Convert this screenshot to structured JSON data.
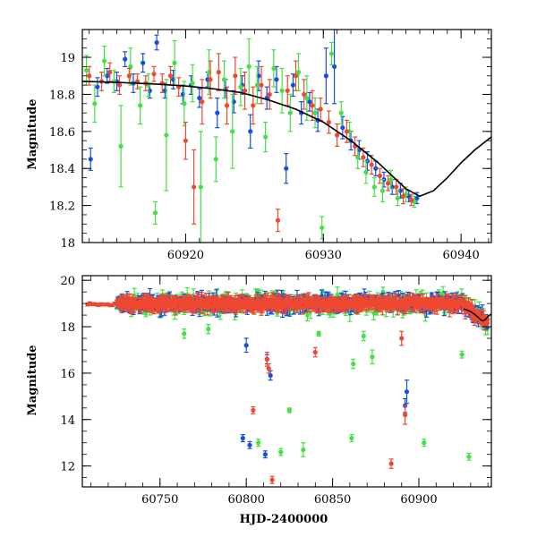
{
  "chart_data": [
    {
      "type": "scatter",
      "title": "",
      "xlabel": "",
      "ylabel": "Magnitude",
      "xlim": [
        60912.5,
        60942.2
      ],
      "ylim": [
        19.15,
        18.0
      ],
      "y_inverted": true,
      "xticks": [
        60920,
        60930,
        60940
      ],
      "xtick_labels": [
        "60920",
        "60930",
        "60940"
      ],
      "yticks": [
        18,
        18.2,
        18.4,
        18.6,
        18.8,
        19
      ],
      "ytick_labels": [
        "18",
        "18.2",
        "18.4",
        "18.6",
        "18.8",
        "19"
      ],
      "colors": {
        "blue": "#1450e0",
        "green": "#44e044",
        "red": "#f04830",
        "model": "#000000"
      },
      "series": [
        {
          "color": "blue",
          "points": [
            [
              60913.1,
              18.45,
              0.06
            ],
            [
              60913.6,
              18.84,
              0.05
            ],
            [
              60914.3,
              18.9,
              0.04
            ],
            [
              60915.0,
              18.87,
              0.05
            ],
            [
              60915.6,
              18.99,
              0.04
            ],
            [
              60916.2,
              18.86,
              0.05
            ],
            [
              60916.9,
              18.97,
              0.05
            ],
            [
              60917.4,
              18.82,
              0.04
            ],
            [
              60917.9,
              19.08,
              0.04
            ],
            [
              60918.5,
              18.82,
              0.04
            ],
            [
              60919.1,
              18.88,
              0.05
            ],
            [
              60919.8,
              18.8,
              0.05
            ],
            [
              60920.4,
              18.85,
              0.05
            ],
            [
              60921.0,
              18.78,
              0.05
            ],
            [
              60921.6,
              18.88,
              0.04
            ],
            [
              60922.3,
              18.7,
              0.08
            ],
            [
              60922.9,
              18.83,
              0.05
            ],
            [
              60923.5,
              18.76,
              0.06
            ],
            [
              60924.1,
              18.85,
              0.05
            ],
            [
              60924.7,
              18.6,
              0.09
            ],
            [
              60925.3,
              18.9,
              0.08
            ],
            [
              60925.9,
              18.78,
              0.06
            ],
            [
              60926.6,
              18.88,
              0.07
            ],
            [
              60927.3,
              18.4,
              0.08
            ],
            [
              60927.8,
              18.85,
              0.06
            ],
            [
              60928.4,
              18.7,
              0.06
            ],
            [
              60929.0,
              18.76,
              0.05
            ],
            [
              60929.6,
              18.66,
              0.06
            ],
            [
              60930.2,
              18.9,
              0.15
            ],
            [
              60930.8,
              18.95,
              0.2
            ],
            [
              60931.4,
              18.62,
              0.06
            ],
            [
              60932.0,
              18.55,
              0.05
            ],
            [
              60932.6,
              18.5,
              0.05
            ],
            [
              60933.2,
              18.44,
              0.05
            ],
            [
              60933.8,
              18.4,
              0.04
            ],
            [
              60934.4,
              18.34,
              0.04
            ],
            [
              60935.0,
              18.3,
              0.04
            ],
            [
              60935.6,
              18.28,
              0.04
            ],
            [
              60936.2,
              18.25,
              0.03
            ],
            [
              60936.8,
              18.24,
              0.03
            ]
          ]
        },
        {
          "color": "green",
          "points": [
            [
              60912.8,
              18.93,
              0.08
            ],
            [
              60913.4,
              18.75,
              0.1
            ],
            [
              60914.1,
              18.98,
              0.08
            ],
            [
              60914.8,
              18.87,
              0.06
            ],
            [
              60915.3,
              18.52,
              0.22
            ],
            [
              60916.0,
              18.95,
              0.1
            ],
            [
              60916.7,
              18.74,
              0.1
            ],
            [
              60917.3,
              18.85,
              0.06
            ],
            [
              60917.8,
              18.16,
              0.06
            ],
            [
              60918.6,
              18.58,
              0.3
            ],
            [
              60919.2,
              18.97,
              0.12
            ],
            [
              60919.9,
              18.75,
              0.12
            ],
            [
              60920.5,
              18.86,
              0.1
            ],
            [
              60921.1,
              18.3,
              0.3
            ],
            [
              60921.7,
              18.92,
              0.12
            ],
            [
              60922.2,
              18.45,
              0.12
            ],
            [
              60922.8,
              18.88,
              0.1
            ],
            [
              60923.4,
              18.6,
              0.2
            ],
            [
              60924.0,
              18.84,
              0.1
            ],
            [
              60924.6,
              18.95,
              0.15
            ],
            [
              60925.2,
              18.85,
              0.1
            ],
            [
              60925.8,
              18.57,
              0.08
            ],
            [
              60926.4,
              18.94,
              0.1
            ],
            [
              60927.0,
              18.82,
              0.12
            ],
            [
              60927.6,
              18.7,
              0.1
            ],
            [
              60928.2,
              18.92,
              0.1
            ],
            [
              60928.8,
              18.78,
              0.12
            ],
            [
              60929.4,
              18.7,
              0.08
            ],
            [
              60929.9,
              18.08,
              0.06
            ],
            [
              60930.6,
              19.02,
              0.06
            ],
            [
              60931.3,
              18.7,
              0.06
            ],
            [
              60931.9,
              18.6,
              0.05
            ],
            [
              60932.5,
              18.46,
              0.06
            ],
            [
              60933.1,
              18.38,
              0.06
            ],
            [
              60933.7,
              18.3,
              0.05
            ],
            [
              60934.3,
              18.28,
              0.06
            ],
            [
              60934.9,
              18.34,
              0.05
            ],
            [
              60935.4,
              18.24,
              0.04
            ],
            [
              60936.0,
              18.26,
              0.04
            ],
            [
              60936.6,
              18.22,
              0.03
            ]
          ]
        },
        {
          "color": "red",
          "points": [
            [
              60913.0,
              18.9,
              0.05
            ],
            [
              60913.9,
              18.87,
              0.05
            ],
            [
              60914.5,
              18.92,
              0.05
            ],
            [
              60915.2,
              18.85,
              0.05
            ],
            [
              60915.9,
              18.9,
              0.04
            ],
            [
              60916.5,
              18.87,
              0.04
            ],
            [
              60917.1,
              18.86,
              0.04
            ],
            [
              60917.7,
              18.91,
              0.04
            ],
            [
              60918.3,
              18.86,
              0.05
            ],
            [
              60918.9,
              18.9,
              0.05
            ],
            [
              60919.5,
              18.84,
              0.05
            ],
            [
              60920.0,
              18.55,
              0.1
            ],
            [
              60920.6,
              18.3,
              0.2
            ],
            [
              60921.2,
              18.76,
              0.12
            ],
            [
              60921.8,
              18.88,
              0.1
            ],
            [
              60922.4,
              18.92,
              0.1
            ],
            [
              60923.0,
              18.74,
              0.1
            ],
            [
              60923.6,
              18.9,
              0.1
            ],
            [
              60924.3,
              18.82,
              0.1
            ],
            [
              60924.9,
              18.74,
              0.1
            ],
            [
              60925.5,
              18.85,
              0.1
            ],
            [
              60926.1,
              18.8,
              0.08
            ],
            [
              60926.7,
              18.12,
              0.06
            ],
            [
              60927.4,
              18.82,
              0.08
            ],
            [
              60928.0,
              18.9,
              0.08
            ],
            [
              60928.6,
              18.8,
              0.08
            ],
            [
              60929.2,
              18.74,
              0.08
            ],
            [
              60929.8,
              18.72,
              0.06
            ],
            [
              60930.4,
              18.65,
              0.06
            ],
            [
              60931.0,
              18.58,
              0.06
            ],
            [
              60931.7,
              18.6,
              0.06
            ],
            [
              60932.3,
              18.52,
              0.05
            ],
            [
              60932.9,
              18.46,
              0.05
            ],
            [
              60933.5,
              18.42,
              0.05
            ],
            [
              60934.1,
              18.36,
              0.04
            ],
            [
              60934.7,
              18.32,
              0.04
            ],
            [
              60935.3,
              18.3,
              0.04
            ],
            [
              60935.8,
              18.25,
              0.04
            ],
            [
              60936.4,
              18.23,
              0.03
            ]
          ]
        }
      ],
      "model_curve": [
        [
          60912.5,
          18.87
        ],
        [
          60915,
          18.865
        ],
        [
          60918,
          18.855
        ],
        [
          60920,
          18.845
        ],
        [
          60922,
          18.83
        ],
        [
          60924,
          18.81
        ],
        [
          60926,
          18.77
        ],
        [
          60928,
          18.72
        ],
        [
          60930,
          18.65
        ],
        [
          60932,
          18.55
        ],
        [
          60934,
          18.43
        ],
        [
          60935,
          18.36
        ],
        [
          60936,
          18.29
        ],
        [
          60937,
          18.25
        ],
        [
          60938,
          18.28
        ],
        [
          60939,
          18.35
        ],
        [
          60940,
          18.43
        ],
        [
          60941,
          18.5
        ],
        [
          60942.2,
          18.57
        ]
      ]
    },
    {
      "type": "scatter",
      "title": "",
      "xlabel": "HJD-2400000",
      "ylabel": "Magnitude",
      "xlim": [
        60705,
        60942
      ],
      "ylim": [
        20.2,
        11.1
      ],
      "y_inverted": true,
      "xticks": [
        60750,
        60800,
        60850,
        60900
      ],
      "xtick_labels": [
        "60750",
        "60800",
        "60850",
        "60900"
      ],
      "yticks": [
        12,
        14,
        16,
        18,
        20
      ],
      "ytick_labels": [
        "12",
        "14",
        "16",
        "18",
        "20"
      ],
      "band": {
        "x_start": 60725,
        "x_end": 60940,
        "base_mag": 19.0
      },
      "series": [
        {
          "color": "blue",
          "outliers": [
            [
              60798,
              13.2,
              0.15
            ],
            [
              60802,
              12.9,
              0.15
            ],
            [
              60811,
              12.5,
              0.15
            ],
            [
              60812,
              16.6,
              0.2
            ],
            [
              60814,
              15.9,
              0.2
            ],
            [
              60800,
              17.2,
              0.3
            ],
            [
              60893,
              15.2,
              0.5
            ],
            [
              60892,
              14.6,
              0.3
            ]
          ]
        },
        {
          "color": "green",
          "outliers": [
            [
              60807,
              13.0,
              0.15
            ],
            [
              60820,
              12.6,
              0.15
            ],
            [
              60825,
              14.4,
              0.1
            ],
            [
              60833,
              12.7,
              0.3
            ],
            [
              60861,
              13.2,
              0.15
            ],
            [
              60873,
              16.7,
              0.3
            ],
            [
              60868,
              17.6,
              0.2
            ],
            [
              60903,
              13.0,
              0.15
            ],
            [
              60925,
              16.8,
              0.15
            ],
            [
              60929,
              12.4,
              0.15
            ],
            [
              60764,
              17.7,
              0.2
            ],
            [
              60778,
              17.9,
              0.2
            ],
            [
              60842,
              17.7,
              0.1
            ],
            [
              60862,
              16.4,
              0.2
            ]
          ]
        },
        {
          "color": "red",
          "outliers": [
            [
              60815,
              11.4,
              0.15
            ],
            [
              60804,
              14.4,
              0.15
            ],
            [
              60812,
              16.6,
              0.3
            ],
            [
              60840,
              16.9,
              0.2
            ],
            [
              60884,
              12.1,
              0.2
            ],
            [
              60892,
              14.2,
              0.4
            ],
            [
              60890,
              17.5,
              0.3
            ],
            [
              60813,
              16.2,
              0.2
            ]
          ]
        }
      ]
    }
  ]
}
